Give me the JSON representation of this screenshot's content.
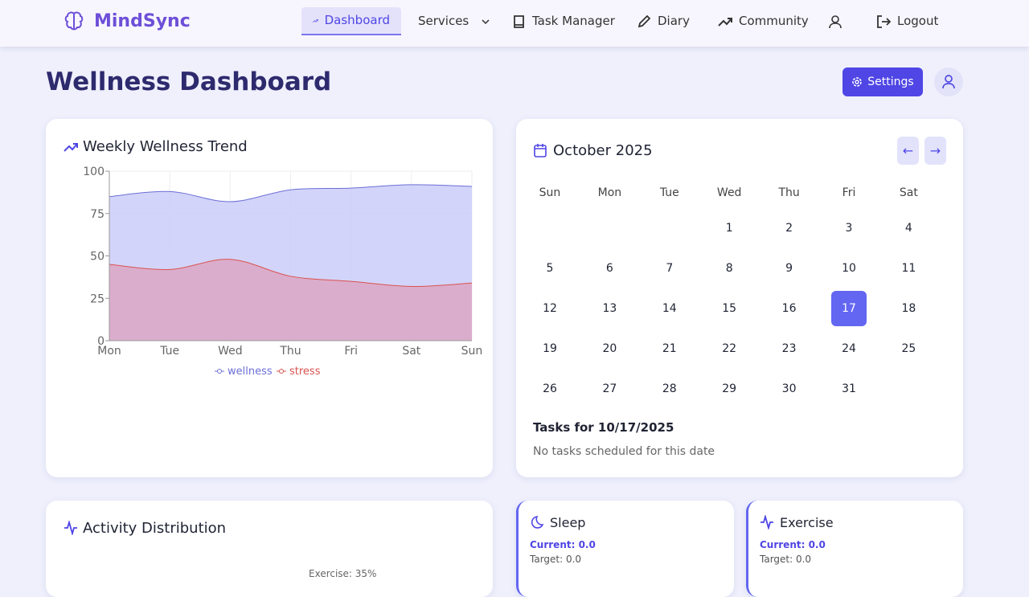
{
  "nav": {
    "brand": "MindSync",
    "items": [
      "Dashboard",
      "Services",
      "Task Manager",
      "Diary",
      "Community",
      "Logout"
    ]
  },
  "header": {
    "title": "Wellness Dashboard",
    "settings": "Settings"
  },
  "trend": {
    "title": "Weekly Wellness Trend",
    "chart_data": {
      "type": "area",
      "categories": [
        "Mon",
        "Tue",
        "Wed",
        "Thu",
        "Fri",
        "Sat",
        "Sun"
      ],
      "series": [
        {
          "name": "wellness",
          "color": "#6b6fd6",
          "fill": "#cbcdf8",
          "values": [
            85,
            88,
            82,
            89,
            90,
            92,
            91
          ]
        },
        {
          "name": "stress",
          "color": "#d9534f",
          "fill": "#dca6c4",
          "values": [
            45,
            42,
            48,
            38,
            35,
            32,
            34
          ]
        }
      ],
      "ylim": [
        0,
        100
      ],
      "yticks": [
        0,
        25,
        50,
        75,
        100
      ],
      "grid": true,
      "legend": "bottom"
    }
  },
  "calendar": {
    "month": "October 2025",
    "prev": "←",
    "next": "→",
    "weekdays": [
      "Sun",
      "Mon",
      "Tue",
      "Wed",
      "Thu",
      "Fri",
      "Sat"
    ],
    "weeks": [
      [
        null,
        null,
        null,
        1,
        2,
        3,
        4
      ],
      [
        5,
        6,
        7,
        8,
        9,
        10,
        11
      ],
      [
        12,
        13,
        14,
        15,
        16,
        17,
        18
      ],
      [
        19,
        20,
        21,
        22,
        23,
        24,
        25
      ],
      [
        26,
        27,
        28,
        29,
        30,
        31,
        null
      ]
    ],
    "selected": 17,
    "tasks_title": "Tasks for 10/17/2025",
    "tasks_empty": "No tasks scheduled for this date"
  },
  "activity": {
    "title": "Activity Distribution",
    "label": "Exercise: 35%"
  },
  "metrics": [
    {
      "title": "Sleep",
      "current": "Current: 0.0",
      "target": "Target: 0.0"
    },
    {
      "title": "Exercise",
      "current": "Current: 0.0",
      "target": "Target: 0.0"
    }
  ]
}
